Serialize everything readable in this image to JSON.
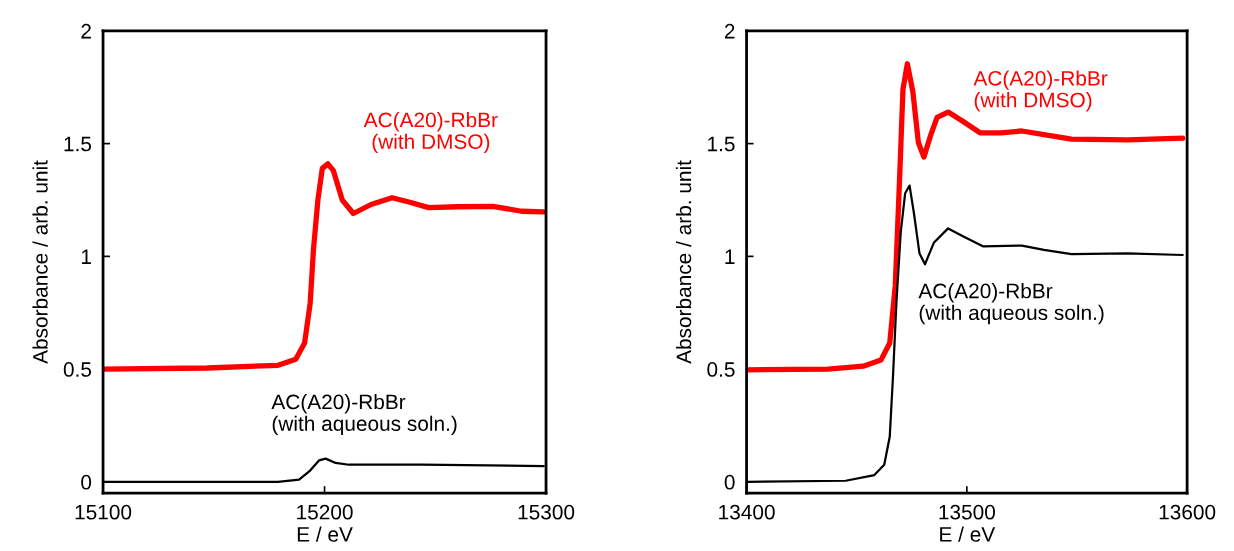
{
  "chart_data": [
    {
      "type": "line",
      "xlabel": "E / eV",
      "ylabel": "Absorbance / arb. unit",
      "xlim": [
        15100,
        15300
      ],
      "xticks": [
        15100,
        15200,
        15300
      ],
      "ylim": [
        -0.05,
        2
      ],
      "yticks": [
        0,
        0.5,
        1,
        1.5,
        2
      ],
      "grid": false,
      "legend": false,
      "series": [
        {
          "name": "AC(A20)-RbBr\n(with DMSO)",
          "color": "#ff0000",
          "x": [
            15100,
            15147,
            15179,
            15187,
            15191,
            15193.5,
            15195,
            15197,
            15199,
            15201.5,
            15204,
            15208,
            15213,
            15221,
            15230.5,
            15238.5,
            15247,
            15260,
            15276,
            15289,
            15299
          ],
          "values": [
            0.5,
            0.505,
            0.517,
            0.544,
            0.616,
            0.79,
            1.03,
            1.25,
            1.39,
            1.41,
            1.38,
            1.25,
            1.19,
            1.23,
            1.26,
            1.24,
            1.216,
            1.22,
            1.222,
            1.2,
            1.197
          ]
        },
        {
          "name": "AC(A20)-RbBr\n(with aqueous soln.)",
          "color": "#000000",
          "x": [
            15100,
            15179,
            15188.5,
            15193.5,
            15197.5,
            15200.5,
            15205,
            15211,
            15243.5,
            15299
          ],
          "values": [
            0.0,
            0.0,
            0.01,
            0.05,
            0.095,
            0.103,
            0.084,
            0.076,
            0.076,
            0.07
          ]
        }
      ]
    },
    {
      "type": "line",
      "xlabel": "E / eV",
      "ylabel": "Absorbance / arb. unit",
      "xlim": [
        13400,
        13600
      ],
      "xticks": [
        13400,
        13500,
        13600
      ],
      "ylim": [
        -0.05,
        2
      ],
      "yticks": [
        0,
        0.5,
        1,
        1.5,
        2
      ],
      "grid": false,
      "legend": false,
      "series": [
        {
          "name": "AC(A20)-RbBr\n(with DMSO)",
          "color": "#ff0000",
          "x": [
            13400,
            13437,
            13453,
            13461,
            13465,
            13467.5,
            13469.5,
            13471,
            13473,
            13475.5,
            13478,
            13480.5,
            13483.5,
            13486.5,
            13491.5,
            13498,
            13506,
            13515.5,
            13525,
            13535,
            13547.5,
            13573,
            13598
          ],
          "values": [
            0.497,
            0.5,
            0.513,
            0.54,
            0.616,
            0.87,
            1.35,
            1.74,
            1.854,
            1.73,
            1.505,
            1.44,
            1.535,
            1.616,
            1.64,
            1.6,
            1.548,
            1.548,
            1.556,
            1.54,
            1.52,
            1.517,
            1.524
          ]
        },
        {
          "name": "AC(A20)-RbBr\n(with aqueous soln.)",
          "color": "#000000",
          "x": [
            13400,
            13445,
            13458,
            13462.5,
            13465,
            13466.5,
            13468,
            13470,
            13472,
            13474,
            13476,
            13478.5,
            13481,
            13485,
            13491.5,
            13498,
            13507.5,
            13525,
            13535,
            13547.5,
            13573,
            13598
          ],
          "values": [
            0.0,
            0.005,
            0.03,
            0.076,
            0.2,
            0.473,
            0.79,
            1.108,
            1.28,
            1.314,
            1.19,
            1.013,
            0.965,
            1.06,
            1.124,
            1.09,
            1.044,
            1.048,
            1.029,
            1.01,
            1.013,
            1.006
          ]
        }
      ]
    }
  ]
}
